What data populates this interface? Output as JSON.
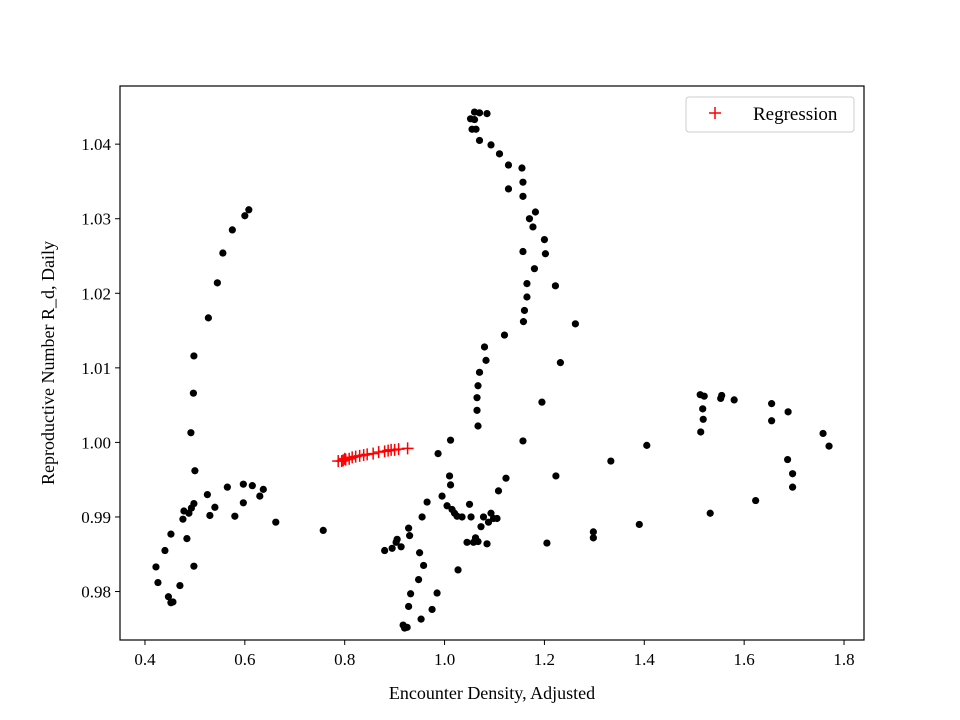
{
  "chart_data": {
    "type": "scatter",
    "xlabel": "Encounter Density, Adjusted",
    "ylabel": "Reproductive Number R_d, Daily",
    "xlim": [
      0.35,
      1.84
    ],
    "ylim": [
      0.9735,
      1.0478
    ],
    "xticks": [
      0.4,
      0.6,
      0.8,
      1.0,
      1.2,
      1.4,
      1.6,
      1.8
    ],
    "xtick_labels": [
      "0.4",
      "0.6",
      "0.8",
      "1.0",
      "1.2",
      "1.4",
      "1.6",
      "1.8"
    ],
    "yticks": [
      0.98,
      0.99,
      1.0,
      1.01,
      1.02,
      1.03,
      1.04
    ],
    "ytick_labels": [
      "0.98",
      "0.99",
      "1.00",
      "1.01",
      "1.02",
      "1.03",
      "1.04"
    ],
    "grid": false,
    "legend": {
      "placement": "top-right",
      "entries": [
        "Regression"
      ]
    },
    "colors": {
      "data": "#000000",
      "regression": "#ff0000",
      "axes": "#000000"
    },
    "series": [
      {
        "marker": "dot",
        "points": [
          [
            0.422,
            0.9833
          ],
          [
            0.426,
            0.9812
          ],
          [
            0.44,
            0.9855
          ],
          [
            0.447,
            0.9793
          ],
          [
            0.452,
            0.9785
          ],
          [
            0.456,
            0.9786
          ],
          [
            0.452,
            0.9877
          ],
          [
            0.47,
            0.9808
          ],
          [
            0.476,
            0.9897
          ],
          [
            0.478,
            0.9908
          ],
          [
            0.484,
            0.9871
          ],
          [
            0.488,
            0.9905
          ],
          [
            0.493,
            0.9912
          ],
          [
            0.498,
            0.9918
          ],
          [
            0.498,
            0.9834
          ],
          [
            0.5,
            0.9962
          ],
          [
            0.492,
            1.0013
          ],
          [
            0.497,
            1.0066
          ],
          [
            0.498,
            1.0116
          ],
          [
            0.525,
            0.993
          ],
          [
            0.53,
            0.9902
          ],
          [
            0.54,
            0.9913
          ],
          [
            0.565,
            0.994
          ],
          [
            0.58,
            0.9901
          ],
          [
            0.597,
            0.9944
          ],
          [
            0.597,
            0.9919
          ],
          [
            0.615,
            0.9942
          ],
          [
            0.63,
            0.9928
          ],
          [
            0.637,
            0.9937
          ],
          [
            0.662,
            0.9893
          ],
          [
            0.527,
            1.0167
          ],
          [
            0.545,
            1.0214
          ],
          [
            0.556,
            1.0254
          ],
          [
            0.575,
            1.0285
          ],
          [
            0.6,
            1.0304
          ],
          [
            0.608,
            1.0312
          ],
          [
            0.757,
            0.9882
          ],
          [
            0.88,
            0.9855
          ],
          [
            0.895,
            0.9858
          ],
          [
            0.903,
            0.9866
          ],
          [
            0.905,
            0.987
          ],
          [
            0.913,
            0.986
          ],
          [
            0.917,
            0.9755
          ],
          [
            0.92,
            0.9751
          ],
          [
            0.925,
            0.9752
          ],
          [
            0.928,
            0.9885
          ],
          [
            0.93,
            0.9875
          ],
          [
            0.928,
            0.978
          ],
          [
            0.932,
            0.9797
          ],
          [
            0.948,
            0.9816
          ],
          [
            0.95,
            0.9852
          ],
          [
            0.953,
            0.9763
          ],
          [
            0.955,
            0.99
          ],
          [
            0.958,
            0.9835
          ],
          [
            0.965,
            0.992
          ],
          [
            0.975,
            0.9776
          ],
          [
            0.985,
            0.9798
          ],
          [
            0.987,
            0.9985
          ],
          [
            0.995,
            0.9928
          ],
          [
            1.005,
            0.9915
          ],
          [
            1.01,
            0.9955
          ],
          [
            1.012,
            1.0003
          ],
          [
            1.012,
            0.9943
          ],
          [
            1.015,
            0.991
          ],
          [
            1.02,
            0.9905
          ],
          [
            1.025,
            0.9901
          ],
          [
            1.027,
            0.9829
          ],
          [
            1.035,
            0.99
          ],
          [
            1.045,
            0.9866
          ],
          [
            1.05,
            0.9917
          ],
          [
            1.053,
            0.99
          ],
          [
            1.058,
            0.9866
          ],
          [
            1.062,
            0.9872
          ],
          [
            1.067,
            0.9867
          ],
          [
            1.067,
            1.0022
          ],
          [
            1.065,
            1.0043
          ],
          [
            1.065,
            1.006
          ],
          [
            1.067,
            1.0076
          ],
          [
            1.07,
            1.0094
          ],
          [
            1.073,
            0.9887
          ],
          [
            1.078,
            0.99
          ],
          [
            1.08,
            1.0128
          ],
          [
            1.083,
            1.011
          ],
          [
            1.085,
            0.9864
          ],
          [
            1.088,
            0.9893
          ],
          [
            1.093,
            0.9905
          ],
          [
            1.098,
            0.9898
          ],
          [
            1.105,
            0.9898
          ],
          [
            1.108,
            0.9935
          ],
          [
            1.12,
            1.0144
          ],
          [
            1.123,
            0.9952
          ],
          [
            1.157,
            1.0002
          ],
          [
            1.06,
            1.0443
          ],
          [
            1.07,
            1.0442
          ],
          [
            1.085,
            1.0441
          ],
          [
            1.052,
            1.0434
          ],
          [
            1.06,
            1.0433
          ],
          [
            1.055,
            1.042
          ],
          [
            1.063,
            1.042
          ],
          [
            1.07,
            1.0405
          ],
          [
            1.093,
            1.0399
          ],
          [
            1.11,
            1.0387
          ],
          [
            1.128,
            1.0372
          ],
          [
            1.128,
            1.034
          ],
          [
            1.155,
            1.0368
          ],
          [
            1.157,
            1.0349
          ],
          [
            1.157,
            1.033
          ],
          [
            1.17,
            1.03
          ],
          [
            1.182,
            1.0309
          ],
          [
            1.177,
            1.0289
          ],
          [
            1.2,
            1.0272
          ],
          [
            1.202,
            1.0253
          ],
          [
            1.157,
            1.0256
          ],
          [
            1.18,
            1.0233
          ],
          [
            1.165,
            1.0213
          ],
          [
            1.165,
            1.0195
          ],
          [
            1.16,
            1.0177
          ],
          [
            1.158,
            1.0162
          ],
          [
            1.222,
            1.021
          ],
          [
            1.262,
            1.0159
          ],
          [
            1.232,
            1.0107
          ],
          [
            1.195,
            1.0054
          ],
          [
            1.223,
            0.9955
          ],
          [
            1.205,
            0.9865
          ],
          [
            1.298,
            0.988
          ],
          [
            1.298,
            0.9872
          ],
          [
            1.333,
            0.9975
          ],
          [
            1.39,
            0.989
          ],
          [
            1.405,
            0.9996
          ],
          [
            1.512,
            1.0064
          ],
          [
            1.52,
            1.0062
          ],
          [
            1.517,
            1.0045
          ],
          [
            1.518,
            1.0031
          ],
          [
            1.513,
            1.0014
          ],
          [
            1.532,
            0.9905
          ],
          [
            1.553,
            1.0059
          ],
          [
            1.555,
            1.0063
          ],
          [
            1.58,
            1.0057
          ],
          [
            1.623,
            0.9922
          ],
          [
            1.655,
            1.0052
          ],
          [
            1.655,
            1.0029
          ],
          [
            1.688,
            1.0041
          ],
          [
            1.687,
            0.9977
          ],
          [
            1.697,
            0.9958
          ],
          [
            1.697,
            0.994
          ],
          [
            1.758,
            1.0012
          ],
          [
            1.77,
            0.9995
          ]
        ]
      },
      {
        "name": "Regression",
        "marker": "plus",
        "points": [
          [
            0.787,
            0.9975
          ],
          [
            0.794,
            0.9975
          ],
          [
            0.797,
            0.9976
          ],
          [
            0.8,
            0.9978
          ],
          [
            0.802,
            0.9977
          ],
          [
            0.809,
            0.9978
          ],
          [
            0.815,
            0.998
          ],
          [
            0.822,
            0.9981
          ],
          [
            0.83,
            0.9982
          ],
          [
            0.838,
            0.9983
          ],
          [
            0.845,
            0.9984
          ],
          [
            0.857,
            0.9985
          ],
          [
            0.868,
            0.9987
          ],
          [
            0.88,
            0.9988
          ],
          [
            0.887,
            0.9989
          ],
          [
            0.893,
            0.999
          ],
          [
            0.9,
            0.999
          ],
          [
            0.908,
            0.9991
          ],
          [
            0.926,
            0.9992
          ]
        ]
      }
    ]
  }
}
